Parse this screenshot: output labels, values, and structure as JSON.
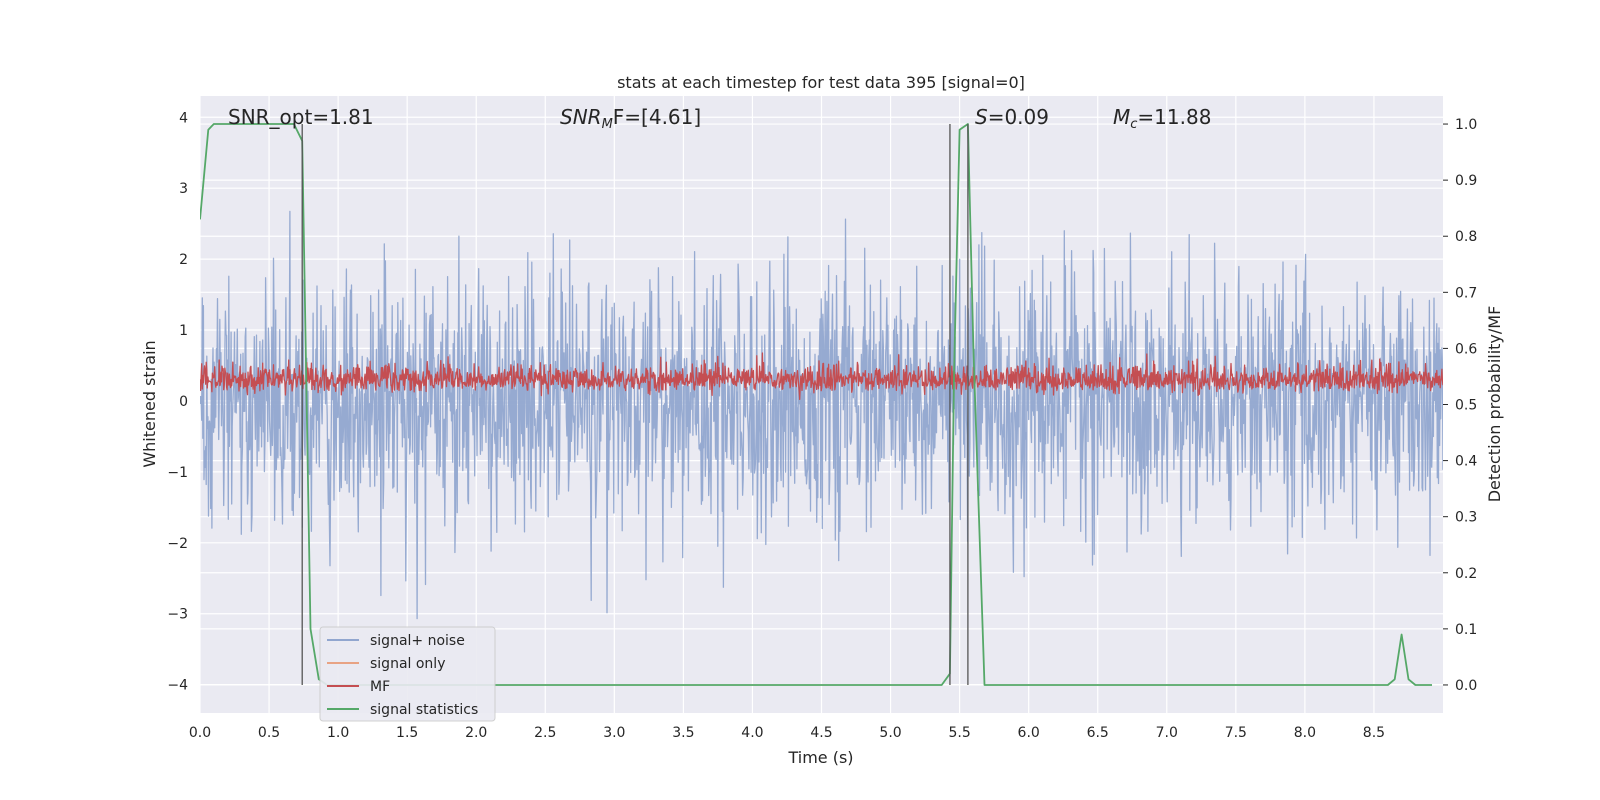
{
  "chart_data": {
    "type": "line",
    "title": "stats at each timestep for test data 395 [signal=0]",
    "xlabel": "Time (s)",
    "ylabel": "Whitened strain",
    "y2label": "Detection probability/MF",
    "xlim": [
      0,
      9
    ],
    "ylim": [
      -4.4,
      4.3
    ],
    "y2lim": [
      -0.05,
      1.05
    ],
    "x_ticks": [
      "0.0",
      "0.5",
      "1.0",
      "1.5",
      "2.0",
      "2.5",
      "3.0",
      "3.5",
      "4.0",
      "4.5",
      "5.0",
      "5.5",
      "6.0",
      "6.5",
      "7.0",
      "7.5",
      "8.0",
      "8.5"
    ],
    "y_ticks": [
      "4",
      "3",
      "2",
      "1",
      "0",
      "−1",
      "−2",
      "−3",
      "−4"
    ],
    "y2_ticks": [
      "1.0",
      "0.9",
      "0.8",
      "0.7",
      "0.6",
      "0.5",
      "0.4",
      "0.3",
      "0.2",
      "0.1",
      "0.0"
    ],
    "grid": true,
    "legend_position": "bottom-left",
    "annotations": {
      "snr_opt": "SNR_opt=1.81",
      "snr_mf": "SNR",
      "snr_mf_sub": "M",
      "snr_mf_rest": "F=[4.61]",
      "s_label": "S",
      "s_value": "=0.09",
      "mc_label": "M",
      "mc_sub": "c",
      "mc_value": "=11.88"
    },
    "series": [
      {
        "name": "signal+ noise",
        "color": "#91a6cf",
        "axis": "left",
        "noise_model": {
          "sigma": 0.85,
          "x_start": 0,
          "x_end": 9,
          "points": 2200
        }
      },
      {
        "name": "signal only",
        "color": "#e8a384",
        "axis": "left",
        "values": []
      },
      {
        "name": "MF",
        "color": "#c44e52",
        "axis": "left",
        "noise_model": {
          "mean": 0.28,
          "sigma": 0.12,
          "x_start": 0,
          "x_end": 9,
          "points": 2200
        }
      },
      {
        "name": "signal statistics",
        "color": "#55a868",
        "axis": "right",
        "x": [
          0.0,
          0.06,
          0.1,
          0.2,
          0.3,
          0.4,
          0.5,
          0.6,
          0.68,
          0.74,
          0.8,
          0.86,
          0.92,
          1.0,
          2.0,
          3.0,
          4.0,
          5.0,
          5.37,
          5.43,
          5.46,
          5.5,
          5.56,
          5.6,
          5.68,
          6.0,
          7.0,
          8.0,
          8.6,
          8.65,
          8.7,
          8.75,
          8.8,
          8.85,
          8.92
        ],
        "y": [
          0.83,
          0.99,
          1.0,
          1.0,
          1.0,
          1.0,
          1.0,
          1.0,
          1.0,
          0.97,
          0.1,
          0.01,
          0.0,
          0.0,
          0.0,
          0.0,
          0.0,
          0.0,
          0.0,
          0.02,
          0.56,
          0.99,
          1.0,
          0.6,
          0.0,
          0.0,
          0.0,
          0.0,
          0.0,
          0.01,
          0.09,
          0.01,
          0.0,
          0.0,
          0.0
        ]
      }
    ],
    "vertical_markers": [
      0.74,
      5.43,
      5.56
    ]
  }
}
